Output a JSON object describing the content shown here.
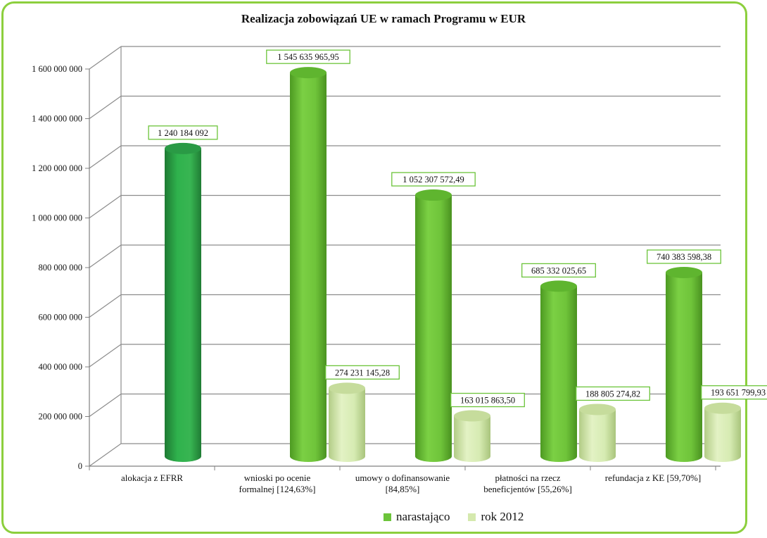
{
  "chart_data": {
    "type": "bar",
    "title": "Realizacja zobowiązań UE w ramach Programu w EUR",
    "categories": [
      [
        "alokacja  z EFRR"
      ],
      [
        "wnioski po ocenie",
        "formalnej [124,63%]"
      ],
      [
        "umowy o dofinansowanie",
        "[84,85%]"
      ],
      [
        "płatności na rzecz",
        "beneficjentów [55,26%]"
      ],
      [
        "refundacja z KE [59,70%]"
      ]
    ],
    "series": [
      {
        "name": "narastająco",
        "values": [
          1240184092,
          1545635965.95,
          1052307572.49,
          685332025.65,
          740383598.38
        ],
        "labels": [
          "1 240 184 092",
          "1 545 635 965,95",
          "1 052 307 572,49",
          "685 332 025,65",
          "740 383 598,38"
        ]
      },
      {
        "name": "rok 2012",
        "values": [
          null,
          274231145.28,
          163015863.5,
          188805274.82,
          193651799.93
        ],
        "labels": [
          null,
          "274 231 145,28",
          "163 015 863,50",
          "188 805 274,82",
          "193 651 799,93"
        ]
      }
    ],
    "ylim": [
      0,
      1600000000
    ],
    "yticks": [
      0,
      200000000,
      400000000,
      600000000,
      800000000,
      1000000000,
      1200000000,
      1400000000,
      1600000000
    ],
    "ytick_labels": [
      "0",
      "200 000 000",
      "400 000 000",
      "600 000 000",
      "800 000 000",
      "1 000 000 000",
      "1 200 000 000",
      "1 400 000 000",
      "1 600 000 000"
    ],
    "grid": true,
    "legend_position": "bottom",
    "colors": {
      "first_bar": "#2fa84a",
      "cumulative": "#6cc43a",
      "year": "#d5e9ae",
      "label_border": "#6cc43a",
      "frame": "#8ccf3d"
    }
  }
}
